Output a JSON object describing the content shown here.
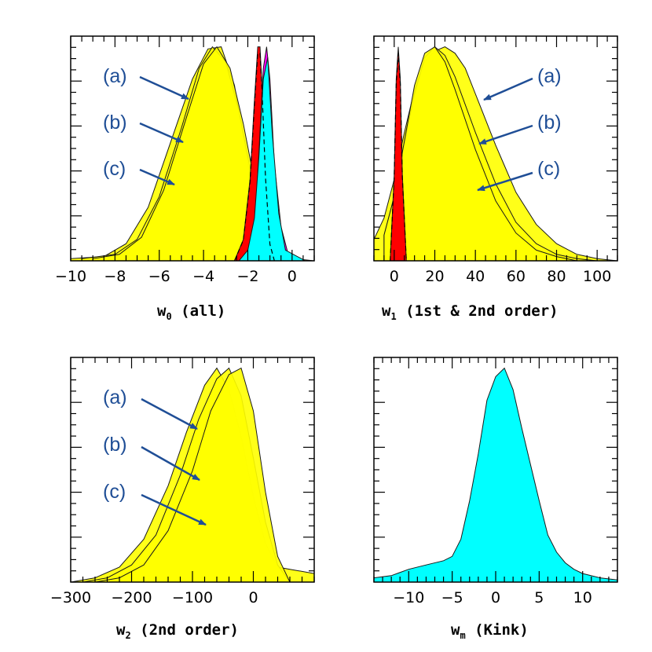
{
  "chart_data": [
    {
      "id": "w0",
      "type": "area",
      "xlabel": "w",
      "xlabel_sub": "0",
      "xlabel_rest": " (all)",
      "xlim": [
        -10,
        1
      ],
      "ylim": [
        0,
        1.05
      ],
      "ticks": [
        -10,
        -8,
        -6,
        -4,
        -2,
        0
      ],
      "tick_labels": [
        "−10",
        "−8",
        "−6",
        "−4",
        "−2",
        "0"
      ],
      "minor_step": 0.5,
      "annotations": [
        "(a)",
        "(b)",
        "(c)"
      ],
      "series": [
        {
          "name": "(a)",
          "color": "#ffff00",
          "x": [
            -10,
            -8.5,
            -7.5,
            -6.5,
            -5.5,
            -4.5,
            -3.8,
            -3.2,
            -2.6,
            -2.0,
            -1.4,
            -0.8,
            1
          ],
          "values": [
            0.01,
            0.02,
            0.08,
            0.25,
            0.55,
            0.85,
            0.99,
            1.0,
            0.82,
            0.45,
            0.14,
            0.02,
            0.0
          ]
        },
        {
          "name": "(b)",
          "color": "#ffff00",
          "x": [
            -9.5,
            -8,
            -7,
            -6,
            -5,
            -4.2,
            -3.6,
            -3.0,
            -2.4,
            -1.8,
            -1.2,
            -0.6,
            0.5
          ],
          "values": [
            0.01,
            0.03,
            0.1,
            0.3,
            0.62,
            0.9,
            1.0,
            0.93,
            0.7,
            0.38,
            0.12,
            0.02,
            0.0
          ]
        },
        {
          "name": "(c)",
          "color": "#ffff00",
          "x": [
            -9,
            -7.8,
            -6.8,
            -5.8,
            -4.8,
            -4.0,
            -3.4,
            -2.8,
            -2.2,
            -1.6,
            -1.0,
            -0.4,
            0.6
          ],
          "values": [
            0.01,
            0.03,
            0.11,
            0.33,
            0.66,
            0.92,
            1.0,
            0.9,
            0.64,
            0.32,
            0.09,
            0.01,
            0.0
          ]
        },
        {
          "name": "red",
          "color": "#ff0000",
          "x": [
            -2.6,
            -2.2,
            -1.9,
            -1.7,
            -1.55,
            -1.45,
            -1.35,
            -1.2,
            -1.0,
            -0.8
          ],
          "values": [
            0.0,
            0.1,
            0.38,
            0.75,
            1.0,
            1.0,
            0.8,
            0.4,
            0.08,
            0.0
          ]
        },
        {
          "name": "magenta",
          "color": "#ff00ff",
          "x": [
            -2.0,
            -1.7,
            -1.5,
            -1.3,
            -1.15,
            -1.0,
            -0.8,
            -0.5,
            -0.2,
            0.4
          ],
          "values": [
            0.0,
            0.15,
            0.5,
            0.9,
            1.0,
            0.85,
            0.45,
            0.16,
            0.04,
            0.0
          ]
        },
        {
          "name": "cyan",
          "color": "#00ffff",
          "x": [
            -2.4,
            -2.0,
            -1.7,
            -1.5,
            -1.3,
            -1.1,
            -0.9,
            -0.6,
            -0.3,
            0.6
          ],
          "values": [
            0.0,
            0.05,
            0.2,
            0.48,
            0.85,
            0.95,
            0.6,
            0.22,
            0.05,
            0.0
          ]
        }
      ]
    },
    {
      "id": "w1",
      "type": "area",
      "xlabel": "w",
      "xlabel_sub": "1",
      "xlabel_rest": " (1st & 2nd order)",
      "xlim": [
        -10,
        110
      ],
      "ylim": [
        0,
        1.05
      ],
      "ticks": [
        0,
        20,
        40,
        60,
        80,
        100
      ],
      "tick_labels": [
        "0",
        "20",
        "40",
        "60",
        "80",
        "100"
      ],
      "minor_step": 5,
      "annotations": [
        "(a)",
        "(b)",
        "(c)"
      ],
      "series": [
        {
          "name": "(a)",
          "color": "#ffff00",
          "x": [
            -10,
            -5,
            0,
            5,
            10,
            15,
            20,
            25,
            30,
            35,
            40,
            50,
            60,
            70,
            80,
            90,
            100,
            110
          ],
          "values": [
            0.1,
            0.2,
            0.38,
            0.6,
            0.8,
            0.93,
            0.98,
            1.0,
            0.97,
            0.9,
            0.78,
            0.54,
            0.32,
            0.17,
            0.08,
            0.03,
            0.01,
            0.0
          ]
        },
        {
          "name": "(b)",
          "color": "#ffff00",
          "x": [
            -5,
            0,
            5,
            10,
            15,
            20,
            25,
            30,
            40,
            50,
            60,
            70,
            80,
            90,
            100
          ],
          "values": [
            0.12,
            0.3,
            0.55,
            0.78,
            0.95,
            1.0,
            0.96,
            0.86,
            0.6,
            0.36,
            0.18,
            0.08,
            0.03,
            0.01,
            0.0
          ]
        },
        {
          "name": "(c)",
          "color": "#ffff00",
          "x": [
            -5,
            0,
            5,
            10,
            15,
            20,
            25,
            30,
            40,
            50,
            60,
            70,
            80,
            90
          ],
          "values": [
            0.12,
            0.3,
            0.56,
            0.82,
            0.97,
            1.0,
            0.93,
            0.8,
            0.52,
            0.28,
            0.13,
            0.05,
            0.02,
            0.0
          ]
        },
        {
          "name": "red",
          "color": "#ff0000",
          "x": [
            -2,
            0,
            1,
            2,
            3,
            4,
            6
          ],
          "values": [
            0.0,
            0.4,
            0.85,
            1.0,
            0.85,
            0.4,
            0.0
          ]
        }
      ]
    },
    {
      "id": "w2",
      "type": "area",
      "xlabel": "w",
      "xlabel_sub": "2",
      "xlabel_rest": " (2nd order)",
      "xlim": [
        -300,
        100
      ],
      "ylim": [
        0,
        1.05
      ],
      "ticks": [
        -300,
        -200,
        -100,
        0
      ],
      "tick_labels": [
        "−300",
        "−200",
        "−100",
        "0"
      ],
      "minor_step": 20,
      "annotations": [
        "(a)",
        "(b)",
        "(c)"
      ],
      "series": [
        {
          "name": "(a)",
          "color": "#ffff00",
          "x": [
            -300,
            -260,
            -220,
            -180,
            -140,
            -110,
            -80,
            -60,
            -40,
            -20,
            0,
            20,
            40,
            60,
            100
          ],
          "values": [
            0.0,
            0.02,
            0.07,
            0.2,
            0.45,
            0.7,
            0.92,
            1.0,
            0.9,
            0.68,
            0.4,
            0.18,
            0.07,
            0.06,
            0.04
          ]
        },
        {
          "name": "(b)",
          "color": "#ffff00",
          "x": [
            -280,
            -240,
            -200,
            -160,
            -120,
            -90,
            -60,
            -40,
            -20,
            0,
            20,
            40,
            60
          ],
          "values": [
            0.0,
            0.02,
            0.08,
            0.22,
            0.5,
            0.76,
            0.95,
            1.0,
            0.87,
            0.58,
            0.28,
            0.08,
            0.0
          ]
        },
        {
          "name": "(c)",
          "color": "#ffff00",
          "x": [
            -260,
            -220,
            -180,
            -140,
            -100,
            -70,
            -40,
            -20,
            0,
            20,
            40,
            60
          ],
          "values": [
            0.0,
            0.02,
            0.08,
            0.24,
            0.52,
            0.8,
            0.97,
            1.0,
            0.8,
            0.42,
            0.12,
            0.0
          ]
        }
      ]
    },
    {
      "id": "wm",
      "type": "area",
      "xlabel": "w",
      "xlabel_sub": "m",
      "xlabel_rest": " (Kink)",
      "xlim": [
        -14,
        14
      ],
      "ylim": [
        0,
        1.05
      ],
      "ticks": [
        -10,
        -5,
        0,
        5,
        10
      ],
      "tick_labels": [
        "−10",
        "−5",
        "0",
        "5",
        "10"
      ],
      "minor_step": 1,
      "annotations": [],
      "series": [
        {
          "name": "kink",
          "color": "#00ffff",
          "x": [
            -14,
            -12,
            -10,
            -8,
            -6,
            -5,
            -4,
            -3,
            -2,
            -1,
            0,
            1,
            2,
            3,
            4,
            5,
            6,
            7,
            8,
            9,
            10,
            12,
            14
          ],
          "values": [
            0.02,
            0.03,
            0.06,
            0.08,
            0.1,
            0.12,
            0.2,
            0.38,
            0.6,
            0.85,
            0.96,
            1.0,
            0.9,
            0.72,
            0.55,
            0.38,
            0.22,
            0.14,
            0.09,
            0.06,
            0.04,
            0.02,
            0.01
          ]
        }
      ]
    }
  ]
}
